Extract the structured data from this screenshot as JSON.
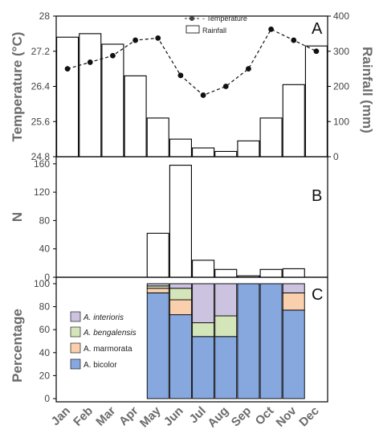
{
  "chart_data": [
    {
      "panel": "A",
      "type": "bar+line",
      "categories": [
        "Jan",
        "Feb",
        "Mar",
        "Apr",
        "May",
        "Jun",
        "Jul",
        "Aug",
        "Sep",
        "Oct",
        "Nov",
        "Dec"
      ],
      "series": [
        {
          "name": "Rainfall",
          "kind": "bar",
          "axis": "right",
          "values": [
            340,
            350,
            320,
            230,
            110,
            50,
            25,
            15,
            45,
            110,
            205,
            315
          ]
        },
        {
          "name": "Temperature",
          "kind": "line",
          "axis": "left",
          "values": [
            26.8,
            26.95,
            27.1,
            27.45,
            27.5,
            26.65,
            26.2,
            26.4,
            26.8,
            27.7,
            27.45,
            27.2
          ]
        }
      ],
      "ylabel_left": "Temperature (°C)",
      "ylabel_right": "Rainfall (mm)",
      "ylim_left": [
        24.8,
        28
      ],
      "yticks_left": [
        "24.8",
        "25.6",
        "26.4",
        "27.2",
        "28"
      ],
      "ylim_right": [
        0,
        400
      ],
      "yticks_right": [
        "0",
        "100",
        "200",
        "300",
        "400"
      ],
      "legend_placement": "top-right",
      "legend": [
        "Temperature",
        "Rainfall"
      ]
    },
    {
      "panel": "B",
      "type": "bar",
      "categories": [
        "Jan",
        "Feb",
        "Mar",
        "Apr",
        "May",
        "Jun",
        "Jul",
        "Aug",
        "Sep",
        "Oct",
        "Nov",
        "Dec"
      ],
      "values": [
        0,
        0,
        0,
        0,
        62,
        158,
        24,
        11,
        2,
        11,
        12,
        0
      ],
      "ylabel": "N",
      "ylim": [
        0,
        170
      ],
      "yticks": [
        "0",
        "40",
        "80",
        "120",
        "160"
      ]
    },
    {
      "panel": "C",
      "type": "stacked-bar",
      "categories": [
        "Jan",
        "Feb",
        "Mar",
        "Apr",
        "May",
        "Jun",
        "Jul",
        "Aug",
        "Sep",
        "Oct",
        "Nov",
        "Dec"
      ],
      "series": [
        {
          "name": "A. bicolor",
          "color": "#86a8df",
          "values": [
            0,
            0,
            0,
            0,
            92,
            73,
            54,
            54,
            100,
            100,
            77,
            0
          ]
        },
        {
          "name": "A. marmorata",
          "color": "#f9cfae",
          "values": [
            0,
            0,
            0,
            0,
            4,
            13,
            0,
            0,
            0,
            0,
            15,
            0
          ]
        },
        {
          "name": "A. bengalensis",
          "color": "#d4e5b9",
          "values": [
            0,
            0,
            0,
            0,
            2,
            10,
            12,
            18,
            0,
            0,
            0,
            0
          ]
        },
        {
          "name": "A. interioris",
          "color": "#ccc3e0",
          "values": [
            0,
            0,
            0,
            0,
            2,
            4,
            34,
            28,
            0,
            0,
            8,
            0
          ]
        }
      ],
      "ylabel": "Percentage",
      "ylim": [
        0,
        100
      ],
      "yticks": [
        "0",
        "20",
        "40",
        "60",
        "80",
        "100"
      ],
      "legend_placement": "left",
      "legend": [
        "A. interioris",
        "A. bengalensis",
        "A. marmorata",
        "A. bicolor"
      ]
    }
  ],
  "panel_letters": [
    "A",
    "B",
    "C"
  ],
  "month_labels": [
    "Jan",
    "Feb",
    "Mar",
    "Apr",
    "May",
    "Jun",
    "Jul",
    "Aug",
    "Sep",
    "Oct",
    "Nov",
    "Dec"
  ],
  "legend_a": {
    "temperature_label": "- Temperature",
    "rainfall_label": "Rainfall"
  },
  "colors": {
    "bicolor": "#86a8df",
    "marmorata": "#f9cfae",
    "bengalensis": "#d4e5b9",
    "interioris": "#ccc3e0"
  }
}
